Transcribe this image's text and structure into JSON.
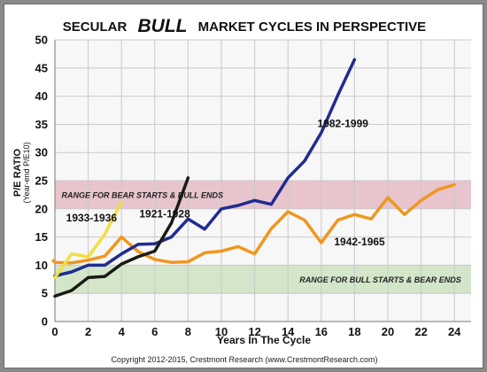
{
  "chart_data": {
    "type": "line",
    "title": {
      "part1": "SECULAR",
      "emphasis": "BULL",
      "part2": "MARKET CYCLES IN PERSPECTIVE"
    },
    "xlabel": "Years In The Cycle",
    "ylabel": "P/E RATIO",
    "ylabel_sub": "(Year-end P/E10)",
    "xlim": [
      0,
      25
    ],
    "ylim": [
      0,
      50
    ],
    "xticks": [
      0,
      2,
      4,
      6,
      8,
      10,
      12,
      14,
      16,
      18,
      20,
      22,
      24
    ],
    "yticks": [
      0,
      5,
      10,
      15,
      20,
      25,
      30,
      35,
      40,
      45,
      50
    ],
    "grid": true,
    "bands": [
      {
        "label": "RANGE FOR BEAR STARTS & BULL ENDS",
        "y0": 20,
        "y1": 25,
        "color": "#e8c4cc",
        "label_x": 0.4,
        "label_anchor": "start"
      },
      {
        "label": "RANGE FOR BULL STARTS & BEAR ENDS",
        "y0": 5,
        "y1": 10,
        "color": "#d3e6c9",
        "label_x": 24.4,
        "label_anchor": "end"
      }
    ],
    "series": [
      {
        "name": "1982-1999",
        "color": "#1f2c8f",
        "x": [
          0,
          1,
          2,
          3,
          4,
          5,
          6,
          7,
          8,
          9,
          10,
          11,
          12,
          13,
          14,
          15,
          16,
          17,
          18
        ],
        "y": [
          8.1,
          8.8,
          10,
          10,
          12,
          13.7,
          13.8,
          15,
          18.2,
          16.4,
          20,
          20.6,
          21.5,
          20.8,
          25.5,
          28.5,
          33.5,
          40.2,
          46.5
        ],
        "label_at": [
          17.3,
          34.5
        ]
      },
      {
        "name": "1942-1965",
        "color": "#f0961e",
        "x": [
          0,
          1,
          2,
          3,
          4,
          5,
          6,
          7,
          8,
          9,
          10,
          11,
          12,
          13,
          14,
          15,
          16,
          17,
          18,
          19,
          20,
          21,
          22,
          23,
          24
        ],
        "y": [
          10.5,
          10.4,
          10.9,
          11.6,
          15,
          12.4,
          11,
          10.5,
          10.6,
          12.2,
          12.5,
          13.3,
          12,
          16.5,
          19.5,
          18,
          14,
          18,
          19,
          18.2,
          22,
          19,
          21.5,
          23.4,
          24.3
        ],
        "label_at": [
          18.3,
          13.5
        ]
      },
      {
        "name": "1921-1928",
        "color": "#1a1a14",
        "x": [
          0,
          1,
          2,
          3,
          4,
          5,
          6,
          7
        ],
        "y": [
          4.5,
          5.5,
          7.8,
          8,
          10.2,
          11.5,
          12.5,
          17.5
        ],
        "label_at": [
          6.6,
          18.5
        ]
      },
      {
        "name": "1933-1936",
        "color": "#f0df40",
        "x": [
          0,
          1,
          2,
          3,
          4
        ],
        "y": [
          7.8,
          12,
          11.5,
          15.5,
          21.2
        ],
        "label_at": [
          2.2,
          17.8
        ]
      }
    ],
    "extra_points": {
      "1921-1928_end": [
        8,
        25.5
      ],
      "1942-1965_start_extra": [
        -0.1,
        10.8
      ]
    }
  },
  "footer": {
    "copyright": "Copyright 2012-2015, Crestmont Research (www.CrestmontResearch.com)"
  }
}
